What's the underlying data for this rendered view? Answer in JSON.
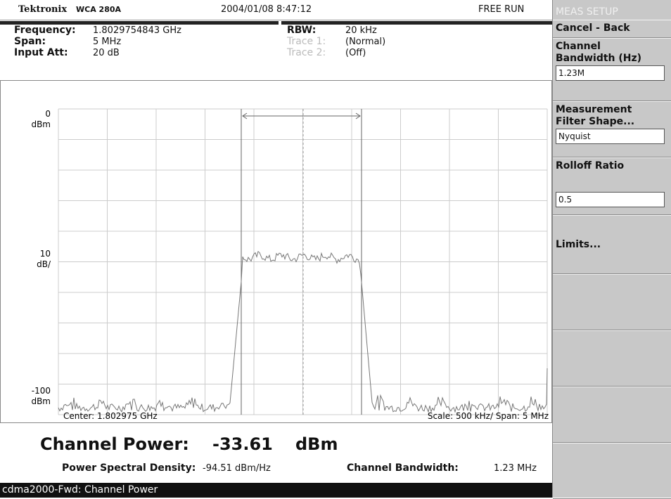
{
  "header": {
    "brand": "Tektronix",
    "model": "WCA 280A",
    "datetime": "2004/01/08 8:47:12",
    "mode": "FREE RUN"
  },
  "settings": {
    "left": [
      {
        "label": "Frequency:",
        "value": "1.8029754843 GHz"
      },
      {
        "label": "Span:",
        "value": "5 MHz"
      },
      {
        "label": "Input Att:",
        "value": "20 dB"
      }
    ],
    "right": [
      {
        "label": "RBW:",
        "value": "20 kHz"
      },
      {
        "label": "Trace 1:",
        "value": "(Normal)"
      },
      {
        "label": "Trace 2:",
        "value": "(Off)"
      }
    ]
  },
  "plot": {
    "ref_level": [
      "0",
      "dBm"
    ],
    "scale": [
      "10",
      "dB/"
    ],
    "bottom_level": [
      "-100",
      "dBm"
    ],
    "center": "Center: 1.802975 GHz",
    "span": "Scale: 500 kHz/  Span: 5 MHz"
  },
  "result": {
    "label": "Channel Power:",
    "value": "-33.61",
    "unit": "dBm",
    "psd_label": "Power Spectral Density:",
    "psd_value": "-94.51  dBm/Hz",
    "bw_label": "Channel Bandwidth:",
    "bw_value": "1.23 MHz"
  },
  "status": "cdma2000-Fwd: Channel Power",
  "menu": {
    "title": "MEAS SETUP",
    "items": [
      {
        "label": "Cancel - Back"
      },
      {
        "label": "Channel Bandwidth (Hz)",
        "input": "1.23M"
      },
      {
        "label": "Measurement Filter Shape...",
        "input": "Nyquist"
      },
      {
        "label": "Rolloff Ratio",
        "input": "0.5"
      },
      {
        "label": "Limits..."
      }
    ]
  }
}
